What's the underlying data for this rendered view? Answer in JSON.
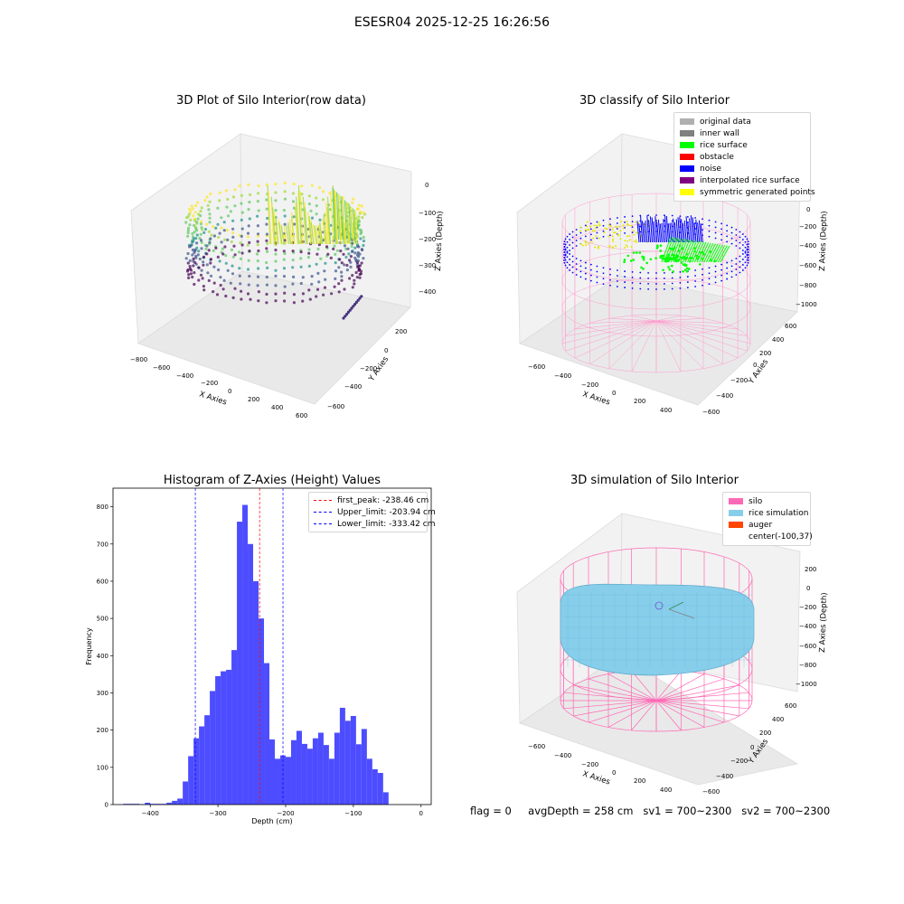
{
  "figure": {
    "suptitle": "ESESR04 2025-12-25 16:26:56",
    "status": {
      "flag": "flag = 0",
      "avg_depth": "avgDepth = 258 cm",
      "sv1": "sv1 = 700~2300",
      "sv2": "sv2 = 700~2300"
    }
  },
  "colors": {
    "first_peak": "#ff0000",
    "limit": "#0000ff",
    "bars": "#4d4dff",
    "silo": "#ff69b4",
    "rice": "#87ceeb",
    "auger": "#ff4500"
  },
  "chart_data": [
    {
      "type": "scatter",
      "title": "3D Plot of Silo Interior(row data)",
      "xlabel": "X Axies",
      "ylabel": "Y Axies",
      "zlabel": "Z Axies (Depth)",
      "x_ticks": [
        "−800",
        "−600",
        "−400",
        "−200",
        "0",
        "200",
        "400",
        "600"
      ],
      "y_ticks": [
        "−600",
        "−400",
        "−200",
        "0",
        "200"
      ],
      "z_ticks": [
        "0",
        "−100",
        "−200",
        "−300",
        "−400"
      ],
      "colormap": "viridis"
    },
    {
      "type": "scatter",
      "title": "3D classify of Silo Interior",
      "xlabel": "X Axies",
      "ylabel": "Y Axies",
      "zlabel": "Z Axies (Depth)",
      "x_ticks": [
        "−600",
        "−400",
        "−200",
        "0",
        "200",
        "400"
      ],
      "y_ticks": [
        "−600",
        "−400",
        "−200",
        "0",
        "200",
        "400",
        "600"
      ],
      "z_ticks": [
        "0",
        "−200",
        "−400",
        "−600",
        "−800",
        "−1000"
      ],
      "legend": [
        {
          "label": "original data",
          "color": "#b0b0b0"
        },
        {
          "label": "inner wall",
          "color": "#808080"
        },
        {
          "label": "rice surface",
          "color": "#00ff00"
        },
        {
          "label": "obstacle",
          "color": "#ff0000"
        },
        {
          "label": "noise",
          "color": "#0000ff"
        },
        {
          "label": "interpolated rice surface",
          "color": "#800080"
        },
        {
          "label": "symmetric generated points",
          "color": "#ffff00"
        }
      ]
    },
    {
      "type": "bar",
      "title": "Histogram of Z-Axies (Height) Values",
      "xlabel": "Depth (cm)",
      "ylabel": "Frequency",
      "xlim": [
        -455,
        15
      ],
      "ylim": [
        0,
        850
      ],
      "x_ticks": [
        -400,
        -300,
        -200,
        -100,
        0
      ],
      "y_ticks": [
        0,
        100,
        200,
        300,
        400,
        500,
        600,
        700,
        800
      ],
      "bin_width": 8,
      "bin_starts": [
        -440,
        -432,
        -424,
        -416,
        -408,
        -400,
        -392,
        -384,
        -376,
        -368,
        -360,
        -352,
        -344,
        -336,
        -328,
        -320,
        -312,
        -304,
        -296,
        -288,
        -280,
        -272,
        -264,
        -256,
        -248,
        -240,
        -232,
        -224,
        -216,
        -208,
        -200,
        -192,
        -184,
        -176,
        -168,
        -160,
        -152,
        -144,
        -136,
        -128,
        -120,
        -112,
        -104,
        -96,
        -88,
        -80,
        -72,
        -64,
        -56,
        -48,
        -40,
        -32,
        -24,
        -16,
        -8
      ],
      "values": [
        2,
        2,
        2,
        1,
        5,
        2,
        2,
        2,
        5,
        10,
        16,
        62,
        130,
        178,
        210,
        240,
        305,
        345,
        358,
        362,
        415,
        760,
        805,
        700,
        600,
        500,
        380,
        175,
        123,
        132,
        128,
        173,
        198,
        163,
        150,
        178,
        193,
        160,
        123,
        193,
        260,
        225,
        238,
        162,
        203,
        123,
        95,
        85,
        33,
        0,
        0,
        0,
        0,
        0,
        0
      ],
      "lines": [
        {
          "name": "first_peak: -238.46 cm",
          "x": -238.46,
          "color": "#ff0000"
        },
        {
          "name": "Upper_limit: -203.94 cm",
          "x": -203.94,
          "color": "#0000ff"
        },
        {
          "name": "Lower_limit: -333.42 cm",
          "x": -333.42,
          "color": "#0000ff"
        }
      ]
    },
    {
      "type": "surface",
      "title": "3D simulation of Silo Interior",
      "xlabel": "X Axies",
      "ylabel": "Y Axies",
      "zlabel": "Z Axies (Depth)",
      "x_ticks": [
        "−600",
        "−400",
        "−200",
        "0",
        "200",
        "400"
      ],
      "y_ticks": [
        "−600",
        "−400",
        "−200",
        "0",
        "200",
        "400",
        "600"
      ],
      "z_ticks": [
        "200",
        "0",
        "−200",
        "−400",
        "−600",
        "−800",
        "−1000"
      ],
      "legend": [
        {
          "label": "silo",
          "color": "#ff69b4"
        },
        {
          "label": "rice simulation",
          "color": "#87ceeb"
        },
        {
          "label": "auger",
          "color": "#ff4500"
        },
        {
          "label": "center(-100,37)",
          "color": ""
        }
      ]
    }
  ]
}
